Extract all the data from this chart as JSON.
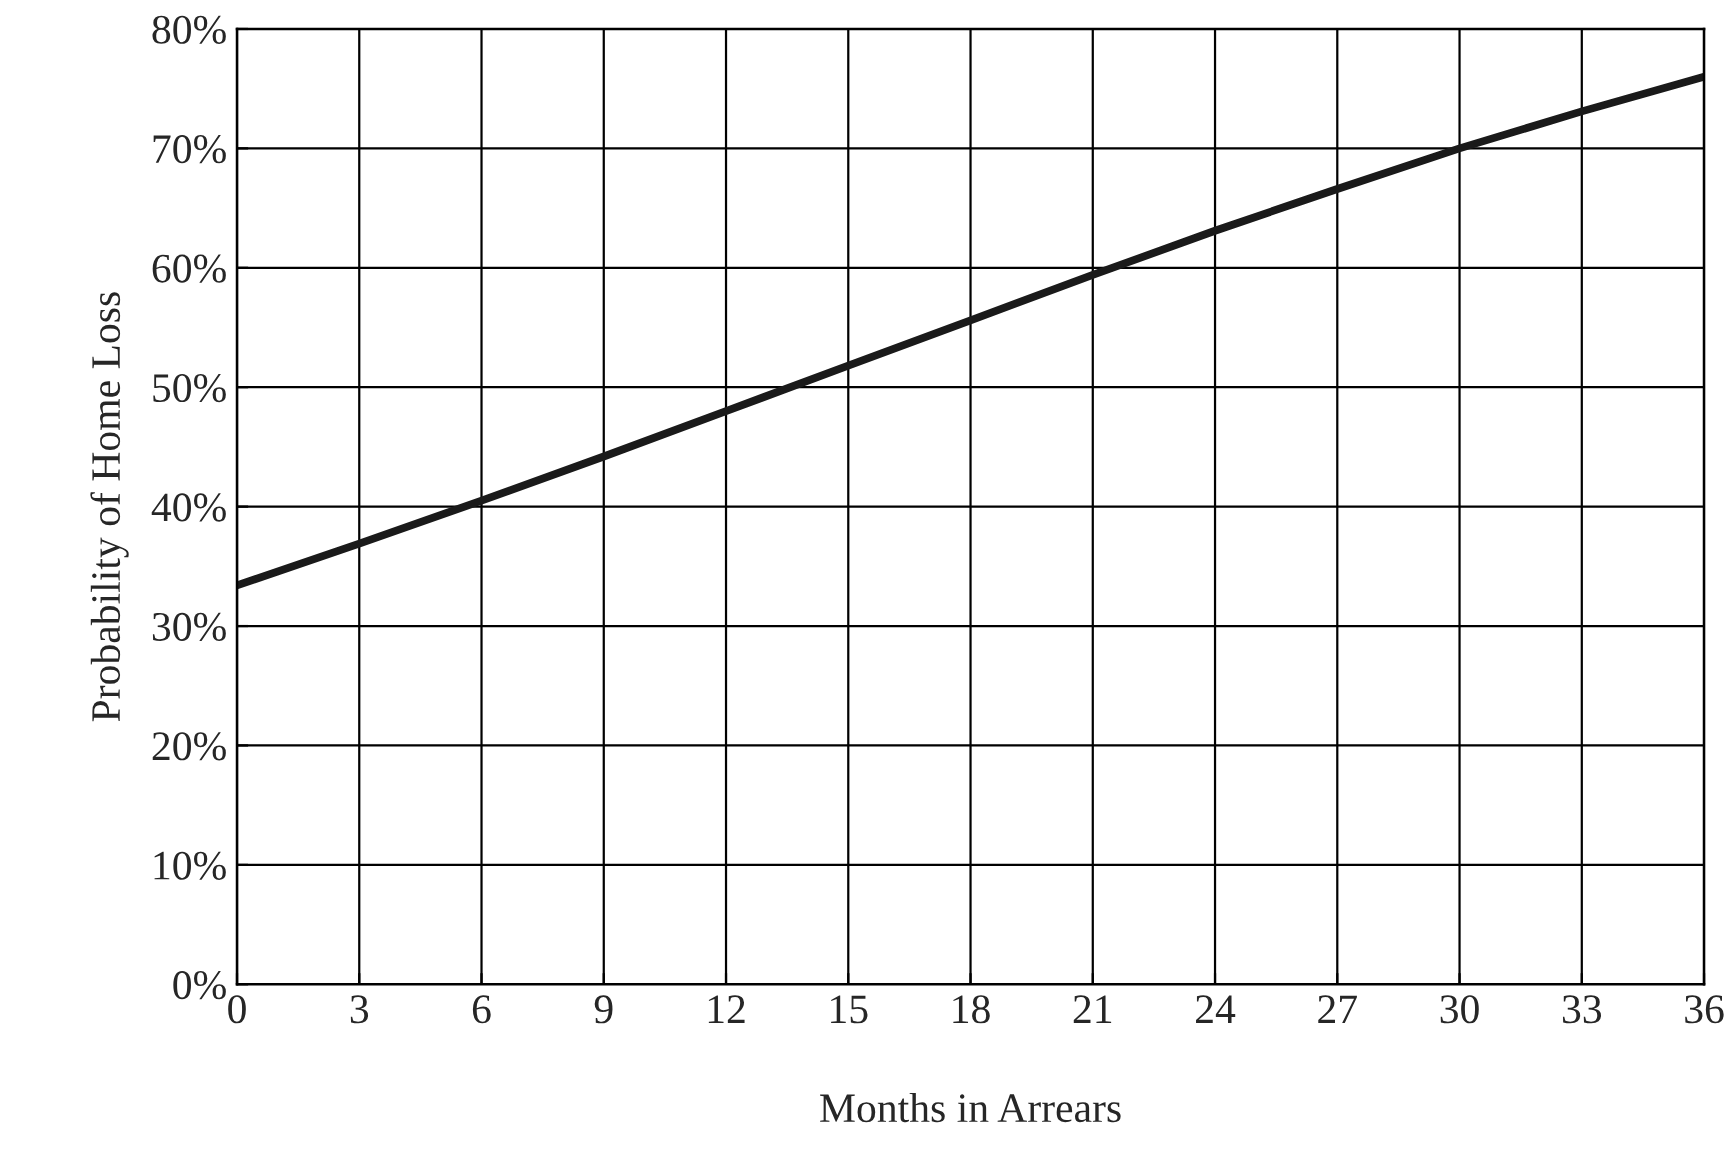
{
  "chart_data": {
    "type": "line",
    "xlabel": "Months in Arrears",
    "ylabel": "Probability of Home Loss",
    "x": [
      0,
      3,
      6,
      9,
      12,
      15,
      18,
      21,
      24,
      27,
      30,
      33,
      36
    ],
    "series": [
      {
        "color": "#1a1a1a",
        "values": [
          33.4,
          36.9,
          40.5,
          44.2,
          48.0,
          51.8,
          55.6,
          59.4,
          63.1,
          66.6,
          70.0,
          73.1,
          76.0
        ]
      }
    ],
    "xlim": [
      0,
      36
    ],
    "xticks": [
      0,
      3,
      6,
      9,
      12,
      15,
      18,
      21,
      24,
      27,
      30,
      33,
      36
    ],
    "ylim": [
      0,
      80
    ],
    "yticks": [
      {
        "value": 0,
        "label": "0%"
      },
      {
        "value": 10,
        "label": "10%"
      },
      {
        "value": 20,
        "label": "20%"
      },
      {
        "value": 30,
        "label": "30%"
      },
      {
        "value": 40,
        "label": "40%"
      },
      {
        "value": 50,
        "label": "50%"
      },
      {
        "value": 60,
        "label": "60%"
      },
      {
        "value": 70,
        "label": "70%"
      },
      {
        "value": 80,
        "label": "80%"
      }
    ],
    "grid": true,
    "line_style": "solid",
    "marker": "none"
  }
}
